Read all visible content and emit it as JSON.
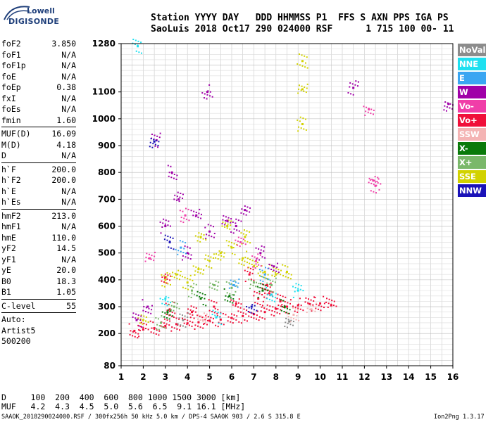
{
  "logo": {
    "brand": "Lowell",
    "product": "DIGISONDE"
  },
  "header": {
    "row1": "Station YYYY DAY   DDD HHMMSS P1  FFS S AXN PPS IGA PS",
    "row2": "SaoLuis 2018 Oct17 290 024000 RSF      1 715 100 00- 11"
  },
  "params": {
    "group1": [
      {
        "name": "foF2",
        "value": "3.850"
      },
      {
        "name": "foF1",
        "value": "N/A"
      },
      {
        "name": "foF1p",
        "value": "N/A"
      },
      {
        "name": "foE",
        "value": "N/A"
      },
      {
        "name": "foEp",
        "value": "0.38"
      },
      {
        "name": "fxI",
        "value": "N/A"
      },
      {
        "name": "foEs",
        "value": "N/A"
      },
      {
        "name": "fmin",
        "value": "1.60"
      }
    ],
    "group2": [
      {
        "name": "MUF(D)",
        "value": "16.09"
      },
      {
        "name": "M(D)",
        "value": "4.18"
      },
      {
        "name": "D",
        "value": "N/A"
      }
    ],
    "group3": [
      {
        "name": "h`F",
        "value": "200.0"
      },
      {
        "name": "h`F2",
        "value": "200.0"
      },
      {
        "name": "h`E",
        "value": "N/A"
      },
      {
        "name": "h`Es",
        "value": "N/A"
      }
    ],
    "group4": [
      {
        "name": "hmF2",
        "value": "213.0"
      },
      {
        "name": "hmF1",
        "value": "N/A"
      },
      {
        "name": "hmE",
        "value": "110.0"
      },
      {
        "name": "yF2",
        "value": "14.5"
      },
      {
        "name": "yF1",
        "value": "N/A"
      },
      {
        "name": "yE",
        "value": "20.0"
      },
      {
        "name": "B0",
        "value": "18.3"
      },
      {
        "name": "B1",
        "value": "1.05"
      }
    ],
    "clevel": {
      "name": "C-level",
      "value": "55"
    },
    "auto": [
      "Auto:",
      "Artist5",
      "500200"
    ]
  },
  "legend": [
    {
      "label": "NoVal",
      "color": "#8c8c8c"
    },
    {
      "label": "NNE",
      "color": "#1fe0f0"
    },
    {
      "label": "E",
      "color": "#3aa6f2"
    },
    {
      "label": "W",
      "color": "#a000a8"
    },
    {
      "label": "Vo-",
      "color": "#f03ea8"
    },
    {
      "label": "Vo+",
      "color": "#f0103a"
    },
    {
      "label": "SSW",
      "color": "#f4b4b4"
    },
    {
      "label": "X-",
      "color": "#0a7a0a"
    },
    {
      "label": "X+",
      "color": "#7ab86a"
    },
    {
      "label": "SSE",
      "color": "#d2d200"
    },
    {
      "label": "NNW",
      "color": "#1a12b8"
    }
  ],
  "muf_table": {
    "row1": "D     100  200  400  600  800 1000 1500 3000 [km]",
    "row2": "MUF   4.2  4.3  4.5  5.0  5.6  6.5  9.1 16.1 [MHz]"
  },
  "footer": {
    "left": "SAAOK_2018290024000.RSF / 300fx256h 50 kHz 5.0 km / DPS-4 SAAOK 903 / 2.6 S 315.8 E",
    "right": "Ion2Png 1.3.17"
  },
  "chart_data": {
    "type": "scatter",
    "xlabel": "",
    "ylabel": "",
    "xlim": [
      1,
      16
    ],
    "ylim": [
      80,
      1280
    ],
    "x_ticks": [
      "1",
      "2",
      "3",
      "4",
      "5",
      "6",
      "7",
      "8",
      "9",
      "10",
      "11",
      "12",
      "13",
      "14",
      "15",
      "16"
    ],
    "y_ticks": [
      "80",
      "200",
      "300",
      "400",
      "500",
      "600",
      "700",
      "800",
      "900",
      "1000",
      "1100",
      "1280"
    ],
    "grid": true,
    "series": [
      {
        "name": "Vo+",
        "color": "#f0103a",
        "points": [
          [
            1.6,
            210
          ],
          [
            2.0,
            215
          ],
          [
            2.5,
            220
          ],
          [
            3.0,
            228
          ],
          [
            3.5,
            235
          ],
          [
            4.0,
            238
          ],
          [
            4.5,
            242
          ],
          [
            5.0,
            248
          ],
          [
            5.5,
            252
          ],
          [
            6.0,
            258
          ],
          [
            6.5,
            265
          ],
          [
            7.0,
            272
          ],
          [
            7.5,
            280
          ],
          [
            8.0,
            292
          ],
          [
            8.5,
            300
          ],
          [
            9.0,
            305
          ],
          [
            9.5,
            310
          ],
          [
            10.0,
            312
          ],
          [
            10.5,
            305
          ],
          [
            3.2,
            290
          ],
          [
            4.2,
            280
          ],
          [
            5.2,
            300
          ],
          [
            6.2,
            310
          ],
          [
            7.2,
            330
          ],
          [
            7.7,
            350
          ],
          [
            8.2,
            320
          ],
          [
            3.0,
            410
          ],
          [
            6.8,
            420
          ],
          [
            7.6,
            380
          ]
        ]
      },
      {
        "name": "SSE",
        "color": "#d2d200",
        "points": [
          [
            2.0,
            250
          ],
          [
            3.0,
            400
          ],
          [
            3.5,
            420
          ],
          [
            4.0,
            390
          ],
          [
            4.5,
            440
          ],
          [
            5.0,
            470
          ],
          [
            5.5,
            500
          ],
          [
            6.0,
            520
          ],
          [
            6.5,
            480
          ],
          [
            7.0,
            450
          ],
          [
            7.5,
            430
          ],
          [
            8.0,
            420
          ],
          [
            8.5,
            430
          ],
          [
            5.8,
            600
          ],
          [
            9.2,
            1215
          ],
          [
            9.2,
            1110
          ],
          [
            9.2,
            980
          ],
          [
            4.6,
            560
          ],
          [
            6.6,
            560
          ]
        ]
      },
      {
        "name": "W",
        "color": "#a000a8",
        "points": [
          [
            1.7,
            250
          ],
          [
            2.2,
            300
          ],
          [
            3.0,
            600
          ],
          [
            3.3,
            800
          ],
          [
            3.6,
            700
          ],
          [
            4.0,
            500
          ],
          [
            4.4,
            640
          ],
          [
            5.0,
            580
          ],
          [
            5.8,
            620
          ],
          [
            6.2,
            600
          ],
          [
            6.6,
            660
          ],
          [
            7.3,
            500
          ],
          [
            7.9,
            450
          ],
          [
            11.5,
            1115
          ],
          [
            15.8,
            1055
          ],
          [
            2.6,
            920
          ],
          [
            4.9,
            1100
          ]
        ]
      },
      {
        "name": "X+",
        "color": "#7ab86a",
        "points": [
          [
            2.8,
            240
          ],
          [
            3.4,
            300
          ],
          [
            4.2,
            360
          ],
          [
            5.2,
            380
          ],
          [
            6.0,
            370
          ],
          [
            7.0,
            390
          ],
          [
            7.8,
            380
          ]
        ]
      },
      {
        "name": "X-",
        "color": "#0a7a0a",
        "points": [
          [
            3.1,
            280
          ],
          [
            4.6,
            330
          ],
          [
            5.9,
            340
          ],
          [
            7.4,
            360
          ],
          [
            8.4,
            300
          ]
        ]
      },
      {
        "name": "Vo-",
        "color": "#f03ea8",
        "points": [
          [
            2.3,
            480
          ],
          [
            3.9,
            640
          ],
          [
            6.4,
            540
          ],
          [
            7.1,
            470
          ],
          [
            12.4,
            770
          ],
          [
            12.5,
            750
          ],
          [
            12.2,
            1035
          ]
        ]
      },
      {
        "name": "NNE",
        "color": "#1fe0f0",
        "points": [
          [
            1.75,
            1270
          ],
          [
            3.0,
            330
          ],
          [
            5.3,
            260
          ],
          [
            7.8,
            345
          ],
          [
            9.0,
            360
          ]
        ]
      },
      {
        "name": "E",
        "color": "#3aa6f2",
        "points": [
          [
            3.7,
            520
          ],
          [
            6.1,
            380
          ],
          [
            7.5,
            420
          ]
        ]
      },
      {
        "name": "NNW",
        "color": "#1a12b8",
        "points": [
          [
            2.5,
            915
          ],
          [
            3.2,
            540
          ],
          [
            6.9,
            300
          ]
        ]
      },
      {
        "name": "SSW",
        "color": "#f4b4b4",
        "points": [
          [
            4.7,
            250
          ],
          [
            8.8,
            270
          ],
          [
            9.6,
            290
          ]
        ]
      },
      {
        "name": "NoVal",
        "color": "#8c8c8c",
        "points": [
          [
            3.8,
            250
          ],
          [
            8.6,
            245
          ]
        ]
      }
    ]
  }
}
